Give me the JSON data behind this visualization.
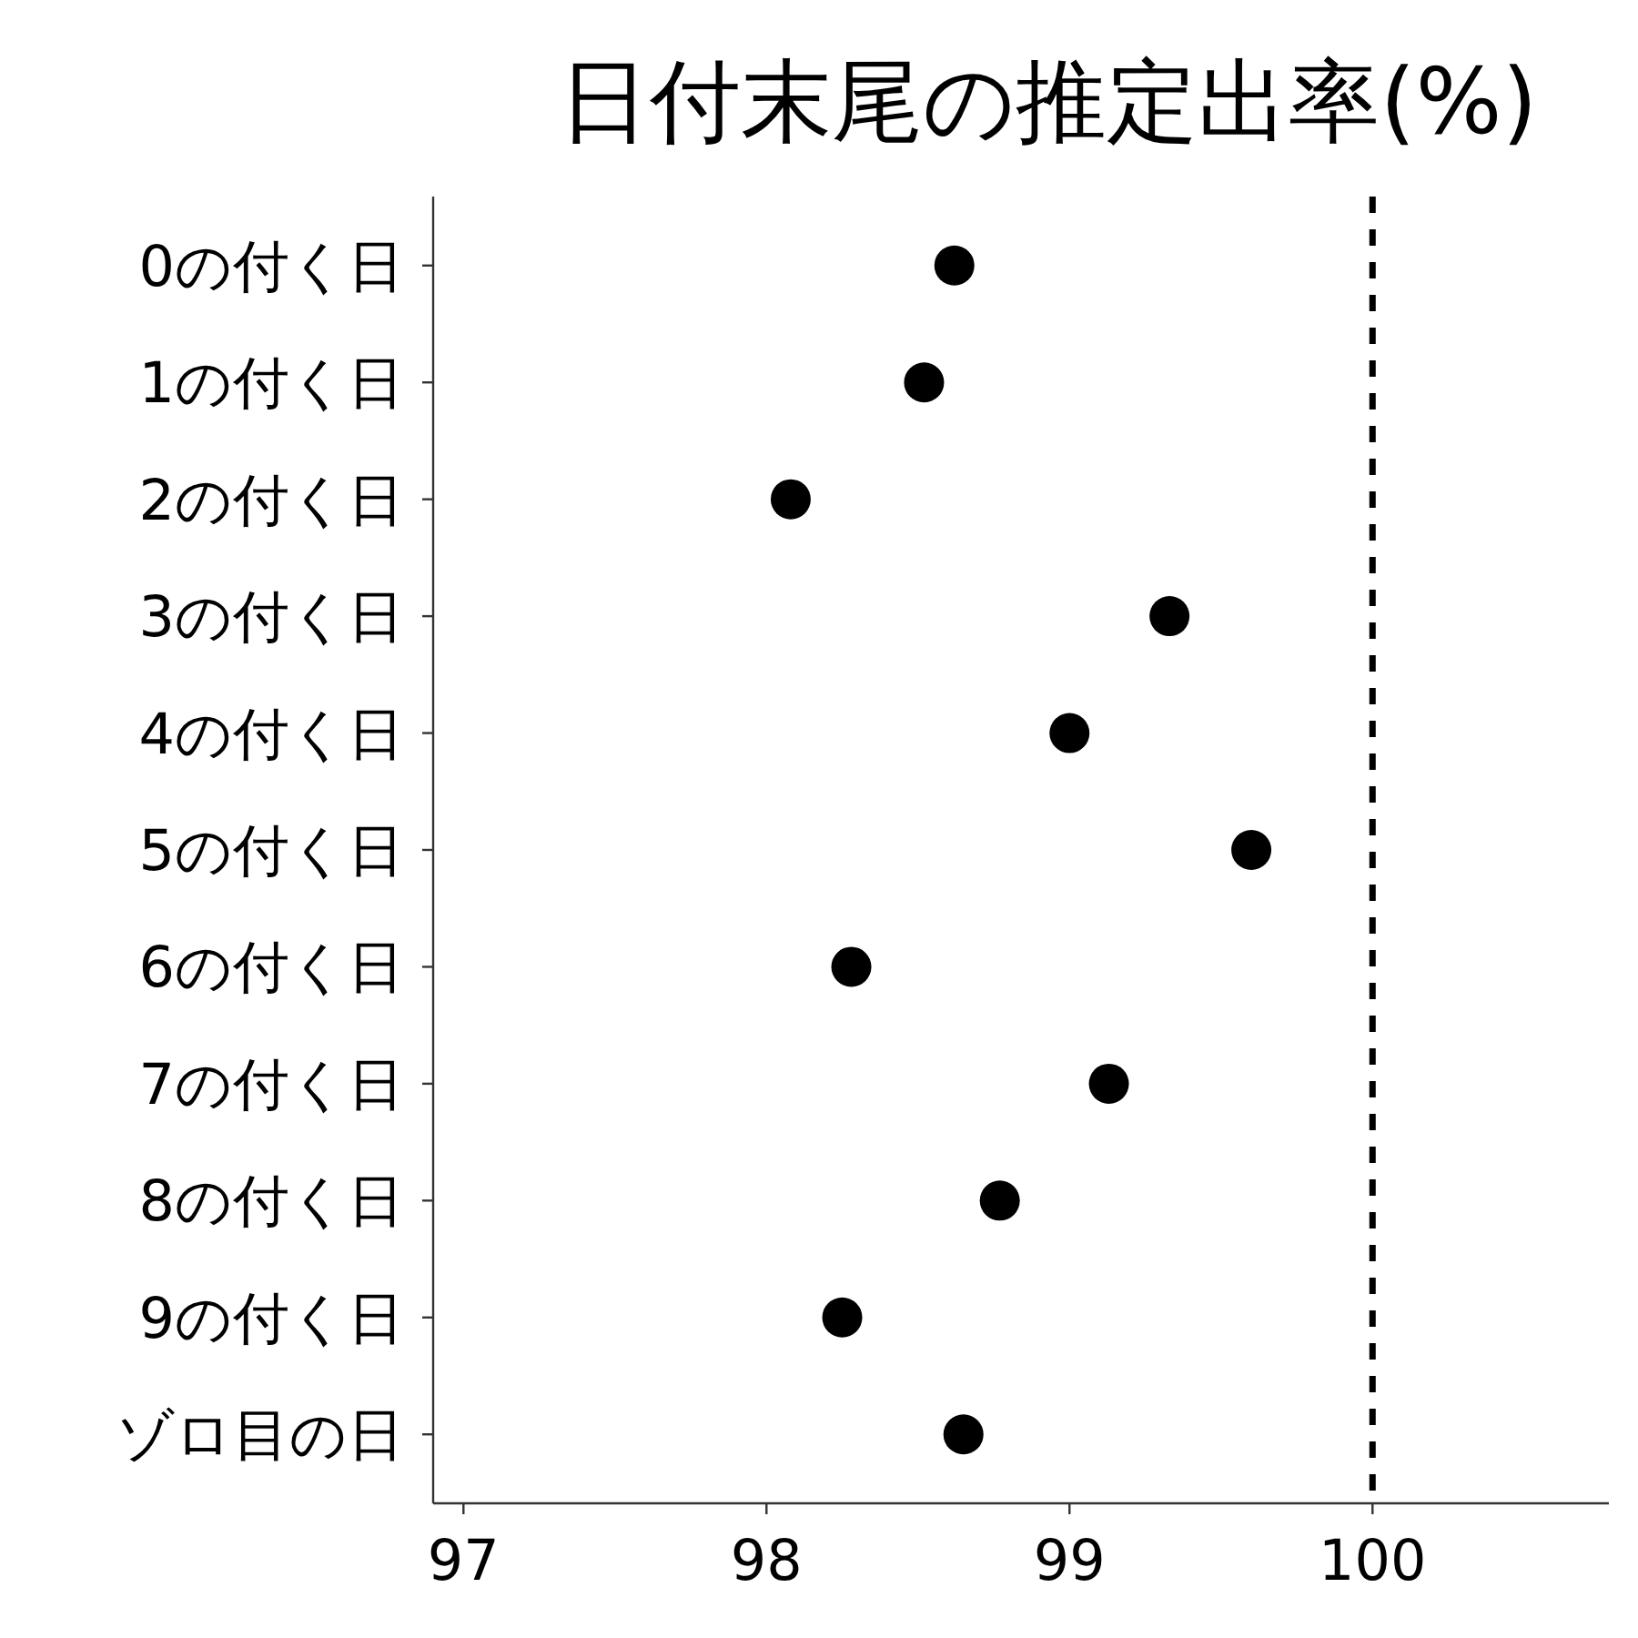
{
  "chart_data": {
    "type": "scatter",
    "orientation": "horizontal",
    "title": "日付末尾の推定出率(%)",
    "categories": [
      "0の付く日",
      "1の付く日",
      "2の付く日",
      "3の付く日",
      "4の付く日",
      "5の付く日",
      "6の付く日",
      "7の付く日",
      "8の付く日",
      "9の付く日",
      "ゾロ目の日"
    ],
    "values": [
      98.62,
      98.52,
      98.08,
      99.33,
      99.0,
      99.6,
      98.28,
      99.13,
      98.77,
      98.25,
      98.65
    ],
    "color": "#000000",
    "marker": "circle",
    "xlim": [
      96.9,
      100.78
    ],
    "xticks": [
      97,
      98,
      99,
      100
    ],
    "ref_lines": [
      {
        "axis": "x",
        "value": 100,
        "color": "#000000",
        "line_style": "dashed"
      }
    ],
    "grid": false
  }
}
